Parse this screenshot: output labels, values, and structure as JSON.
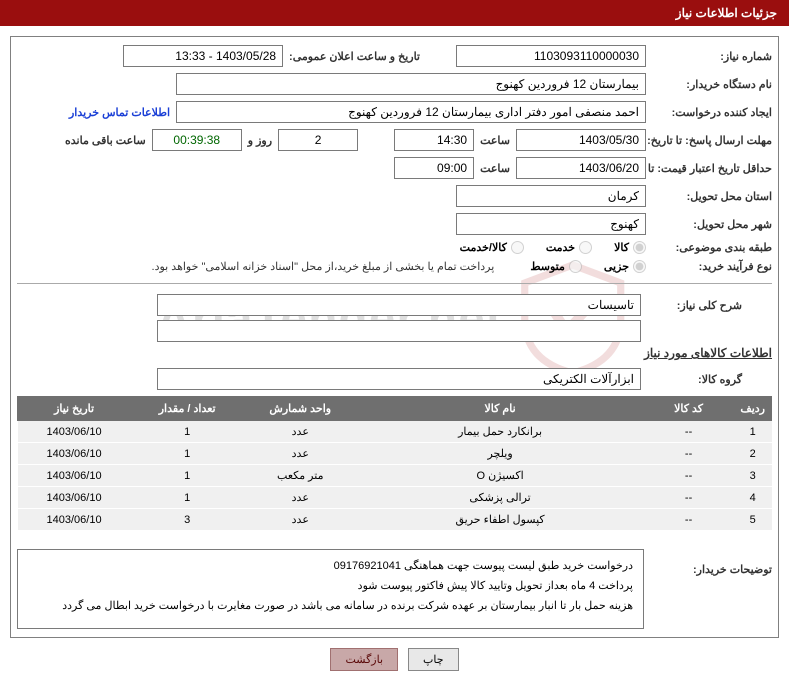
{
  "header": {
    "title": "جزئیات اطلاعات نیاز"
  },
  "labels": {
    "need_no": "شماره نیاز:",
    "announce_dt": "تاریخ و ساعت اعلان عمومی:",
    "buyer_org": "نام دستگاه خریدار:",
    "requester": "ایجاد کننده درخواست:",
    "buyer_contact": "اطلاعات تماس خریدار",
    "response_deadline": "مهلت ارسال پاسخ: تا تاریخ:",
    "hour": "ساعت",
    "day_and": "روز و",
    "remaining": "ساعت باقی مانده",
    "price_validity": "حداقل تاریخ اعتبار قیمت: تا تاریخ:",
    "delivery_province": "استان محل تحویل:",
    "delivery_city": "شهر محل تحویل:",
    "subject_class": "طبقه بندی موضوعی:",
    "purchase_type": "نوع فرآیند خرید:",
    "payment_note": "پرداخت تمام یا بخشی از مبلغ خرید،از محل \"اسناد خزانه اسلامی\" خواهد بود.",
    "overview": "شرح کلی نیاز:",
    "goods_section": "اطلاعات کالاهای مورد نیاز",
    "goods_group": "گروه کالا:",
    "buyer_notes": "توضیحات خریدار:"
  },
  "values": {
    "need_no": "1103093110000030",
    "announce_dt": "1403/05/28 - 13:33",
    "buyer_org": "بیمارستان 12 فروردین کهنوج",
    "requester": "احمد منصفی امور دفتر اداری بیمارستان 12 فروردین کهنوج",
    "resp_date": "1403/05/30",
    "resp_time": "14:30",
    "days_left": "2",
    "countdown": "00:39:38",
    "price_date": "1403/06/20",
    "price_time": "09:00",
    "province": "کرمان",
    "city": "کهنوج",
    "overview": "تاسیسات",
    "goods_group": "ابزارآلات الکتریکی"
  },
  "radios": {
    "subject": [
      {
        "label": "کالا",
        "checked": true
      },
      {
        "label": "خدمت",
        "checked": false
      },
      {
        "label": "کالا/خدمت",
        "checked": false
      }
    ],
    "process": [
      {
        "label": "جزیی",
        "checked": true
      },
      {
        "label": "متوسط",
        "checked": false
      }
    ]
  },
  "table": {
    "headers": [
      "ردیف",
      "کد کالا",
      "نام کالا",
      "واحد شمارش",
      "تعداد / مقدار",
      "تاریخ نیاز"
    ],
    "col_widths": [
      "5%",
      "12%",
      "38%",
      "15%",
      "15%",
      "15%"
    ],
    "rows": [
      [
        "1",
        "--",
        "برانکارد حمل بیمار",
        "عدد",
        "1",
        "1403/06/10"
      ],
      [
        "2",
        "--",
        "ویلچر",
        "عدد",
        "1",
        "1403/06/10"
      ],
      [
        "3",
        "--",
        "اکسیژن O",
        "متر مکعب",
        "1",
        "1403/06/10"
      ],
      [
        "4",
        "--",
        "ترالی پزشکی",
        "عدد",
        "1",
        "1403/06/10"
      ],
      [
        "5",
        "--",
        "کپسول اطفاء حریق",
        "عدد",
        "3",
        "1403/06/10"
      ]
    ]
  },
  "description": [
    "درخواست خرید طبق لیست پیوست جهت هماهنگی 09176921041",
    "پرداخت 4 ماه بعداز تحویل وتایید کالا پیش فاکتور پیوست شود",
    "هزینه حمل بار تا انبار بیمارستان بر عهده شرکت برنده در سامانه می باشد در صورت مغایرت با درخواست خرید ابطال می گردد"
  ],
  "buttons": {
    "print": "چاپ",
    "back": "بازگشت"
  },
  "colors": {
    "header_bg": "#9a0e0e",
    "th_bg": "#6f6f6f",
    "td_bg": "#f0f0f0",
    "link": "#1a3fd6",
    "border": "#7a7a7a"
  }
}
